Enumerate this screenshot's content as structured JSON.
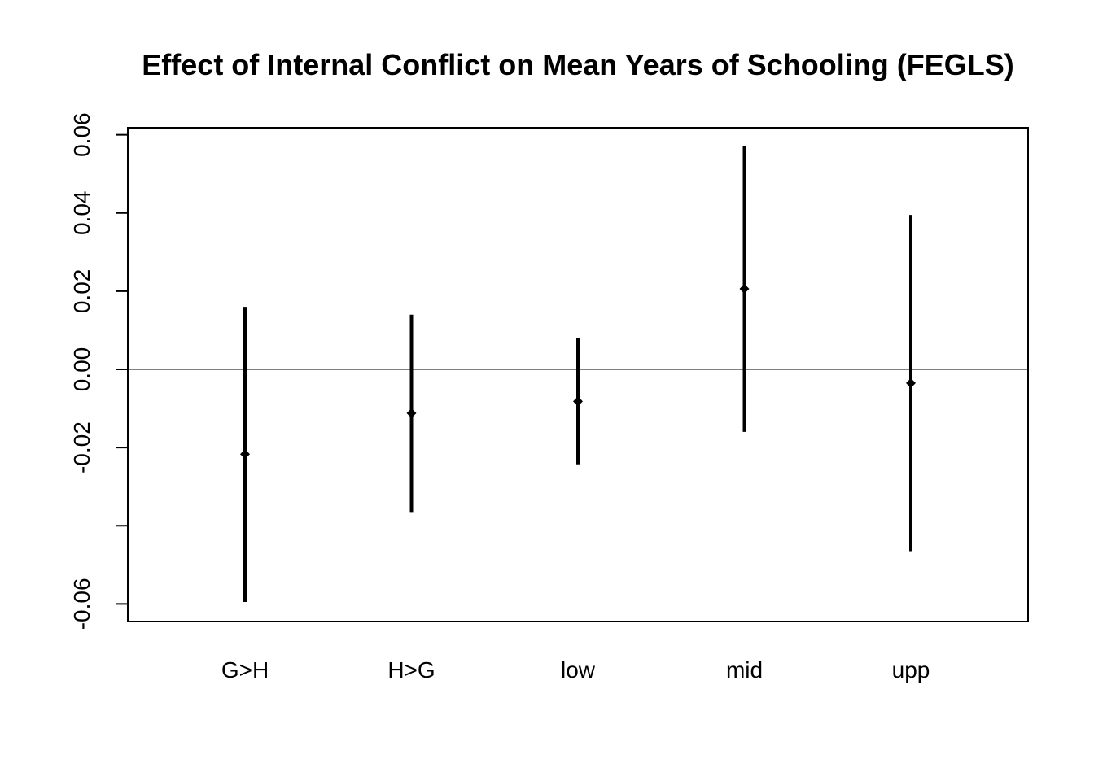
{
  "chart_data": {
    "type": "errorbar",
    "title": "Effect of Internal Conflict on Mean Years of Schooling (FEGLS)",
    "xlabel": "",
    "ylabel": "",
    "categories": [
      "G>H",
      "H>G",
      "low",
      "mid",
      "upp"
    ],
    "estimates": [
      -0.0217,
      -0.0112,
      -0.0082,
      0.0206,
      -0.0035
    ],
    "lower": [
      -0.0595,
      -0.0365,
      -0.0243,
      -0.016,
      -0.0465
    ],
    "upper": [
      0.016,
      0.014,
      0.008,
      0.0572,
      0.0395
    ],
    "ylim": [
      -0.0645,
      0.0618
    ],
    "yticks": [
      -0.06,
      -0.04,
      -0.02,
      0.0,
      0.02,
      0.04,
      0.06
    ],
    "ytick_labels": [
      "-0.06",
      "",
      "-0.02",
      "0.00",
      "0.02",
      "0.04",
      "0.06"
    ],
    "reference_line": 0,
    "grid": false,
    "legend": "none"
  }
}
